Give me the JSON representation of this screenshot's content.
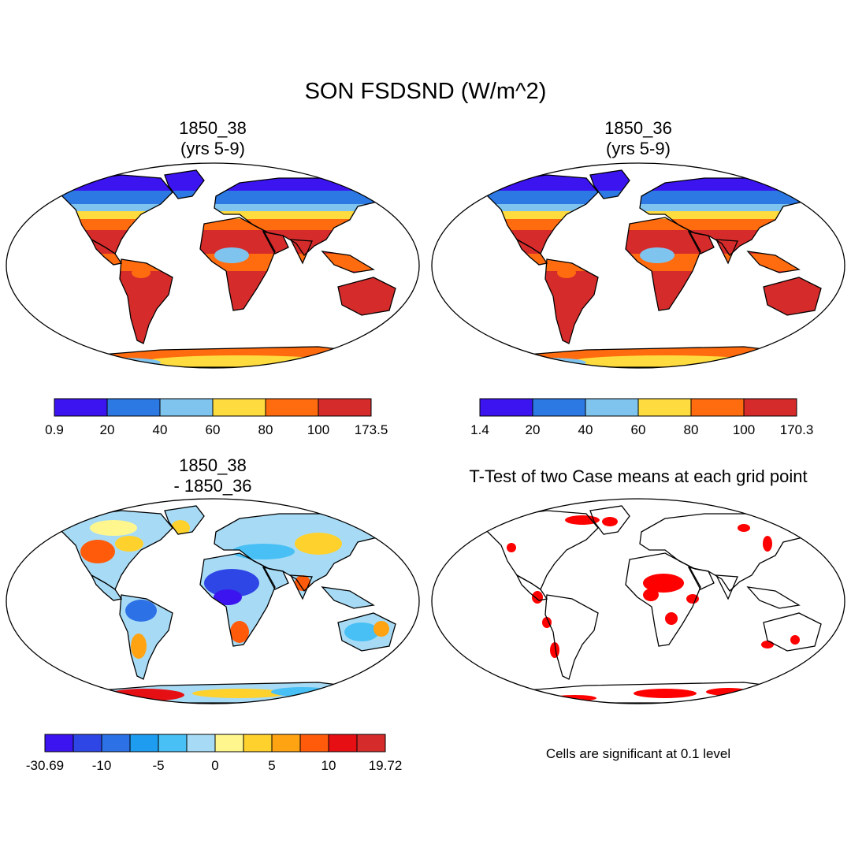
{
  "figure": {
    "title": "SON FSDSND (W/m^2)"
  },
  "panels": [
    {
      "id": "case1",
      "title_lines": [
        "1850_38",
        "(yrs 5-9)"
      ],
      "colorbar": {
        "colors": [
          "#3b14f0",
          "#2c79e4",
          "#7fc4ee",
          "#fedb3e",
          "#ff6b0f",
          "#d62b2b"
        ],
        "labels": [
          "0.9",
          "20",
          "40",
          "60",
          "80",
          "100",
          "173.5"
        ]
      }
    },
    {
      "id": "case2",
      "title_lines": [
        "1850_36",
        "(yrs 5-9)"
      ],
      "colorbar": {
        "colors": [
          "#3b14f0",
          "#2c79e4",
          "#7fc4ee",
          "#fedb3e",
          "#ff6b0f",
          "#d62b2b"
        ],
        "labels": [
          "1.4",
          "20",
          "40",
          "60",
          "80",
          "100",
          "170.3"
        ]
      }
    },
    {
      "id": "difference",
      "title_lines": [
        "1850_38",
        "- 1850_36"
      ],
      "colorbar": {
        "colors": [
          "#3b14f0",
          "#2f46e6",
          "#2d71e6",
          "#1e9cf0",
          "#48c0f5",
          "#a7dbf5",
          "#fff78e",
          "#ffd12c",
          "#ffa313",
          "#ff5b0b",
          "#e60f14",
          "#d62b2b"
        ],
        "labels": [
          "-30.69",
          "-10",
          "-5",
          "0",
          "5",
          "10",
          "19.72"
        ]
      }
    },
    {
      "id": "ttest",
      "title_lines": [
        "T-Test of two Case means at each grid point"
      ],
      "note": "Cells are significant at 0.1 level"
    }
  ],
  "chart_data": [
    {
      "type": "heatmap",
      "title": "1850_38 (yrs 5-9)",
      "levels": [
        0.9,
        20,
        40,
        60,
        80,
        100,
        173.5
      ],
      "range": [
        0.9,
        173.5
      ],
      "colormap": [
        "#3b14f0",
        "#2c79e4",
        "#7fc4ee",
        "#fedb3e",
        "#ff6b0f",
        "#d62b2b"
      ]
    },
    {
      "type": "heatmap",
      "title": "1850_36 (yrs 5-9)",
      "levels": [
        1.4,
        20,
        40,
        60,
        80,
        100,
        170.3
      ],
      "range": [
        1.4,
        170.3
      ],
      "colormap": [
        "#3b14f0",
        "#2c79e4",
        "#7fc4ee",
        "#fedb3e",
        "#ff6b0f",
        "#d62b2b"
      ]
    },
    {
      "type": "heatmap",
      "title": "1850_38 - 1850_36",
      "levels": [
        -30.69,
        -10,
        -5,
        0,
        5,
        10,
        19.72
      ],
      "range": [
        -30.69,
        19.72
      ]
    },
    {
      "type": "heatmap",
      "title": "T-Test of two Case means at each grid point",
      "significance_level": 0.1,
      "significant_color": "#ff0000"
    }
  ]
}
